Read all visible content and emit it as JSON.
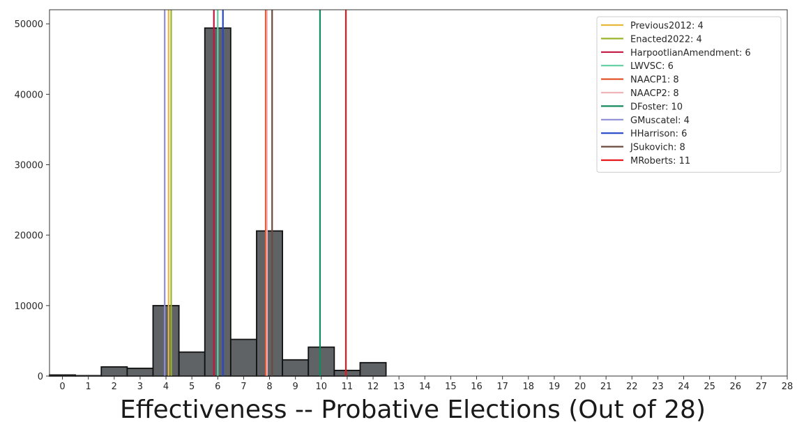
{
  "chart_data": {
    "type": "bar",
    "xlabel": "Effectiveness -- Probative Elections (Out of 28)",
    "ylabel": "",
    "title": "",
    "xlim": [
      -0.5,
      28
    ],
    "ylim": [
      0,
      52000
    ],
    "xticks": [
      0,
      1,
      2,
      3,
      4,
      5,
      6,
      7,
      8,
      9,
      10,
      11,
      12,
      13,
      14,
      15,
      16,
      17,
      18,
      19,
      20,
      21,
      22,
      23,
      24,
      25,
      26,
      27,
      28
    ],
    "yticks": [
      0,
      10000,
      20000,
      30000,
      40000,
      50000
    ],
    "legend_position": "top-right",
    "bar_color": "#5f6366",
    "bars": {
      "x": [
        0,
        1,
        2,
        3,
        4,
        5,
        6,
        7,
        8,
        9,
        10,
        11,
        12,
        13,
        14,
        15,
        16,
        17,
        18,
        19,
        20,
        21,
        22,
        23,
        24,
        25,
        26,
        27
      ],
      "values": [
        150,
        60,
        1300,
        1100,
        10000,
        3400,
        49400,
        5200,
        20600,
        2300,
        4100,
        800,
        1900,
        0,
        0,
        0,
        0,
        0,
        0,
        0,
        0,
        0,
        0,
        0,
        0,
        0,
        0,
        0
      ]
    },
    "series": [
      {
        "label": "Previous2012: 4",
        "x": 4.1,
        "color": "#e8b83a"
      },
      {
        "label": "Enacted2022: 4",
        "x": 4.2,
        "color": "#9ab52c"
      },
      {
        "label": "HarpootlianAmendment: 6",
        "x": 5.85,
        "color": "#c0163f"
      },
      {
        "label": "LWVSC: 6",
        "x": 6.0,
        "color": "#5fcfa0"
      },
      {
        "label": "NAACP1: 8",
        "x": 7.85,
        "color": "#e2542a"
      },
      {
        "label": "NAACP2: 8",
        "x": 7.9,
        "color": "#f0b3b8"
      },
      {
        "label": "DFoster: 10",
        "x": 9.95,
        "color": "#118a5d"
      },
      {
        "label": "GMuscatel: 4",
        "x": 3.95,
        "color": "#8d8fd6"
      },
      {
        "label": "HHarrison: 6",
        "x": 6.2,
        "color": "#2247c9"
      },
      {
        "label": "JSukovich: 8",
        "x": 8.1,
        "color": "#6b4a3d"
      },
      {
        "label": "MRoberts: 11",
        "x": 10.95,
        "color": "#e3191c"
      }
    ]
  }
}
